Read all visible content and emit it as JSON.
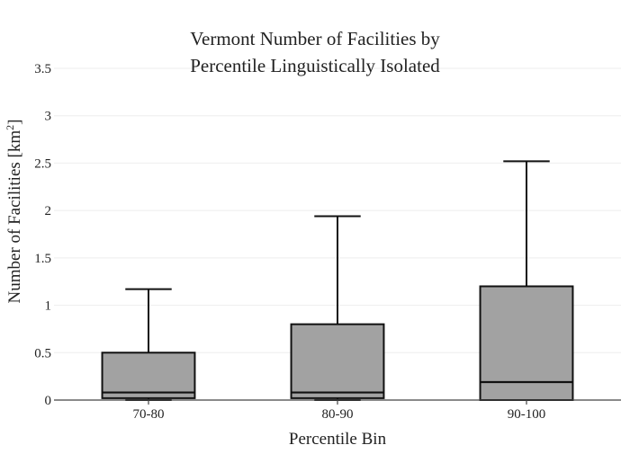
{
  "chart_data": {
    "type": "box",
    "title_lines": [
      "Vermont Number of Facilities by",
      "Percentile Linguistically Isolated"
    ],
    "xlabel": "Percentile Bin",
    "ylabel": "Number of Facilities",
    "ylabel_unit_base": "km",
    "ylabel_unit_sup": "2",
    "ylim": [
      0,
      3.5
    ],
    "yticks": [
      0,
      0.5,
      1,
      1.5,
      2,
      2.5,
      3,
      3.5
    ],
    "ytick_labels": [
      "0",
      "0.5",
      "1",
      "1.5",
      "2",
      "2.5",
      "3",
      "3.5"
    ],
    "grid": true,
    "categories": [
      "70-80",
      "80-90",
      "90-100"
    ],
    "boxes": [
      {
        "category": "70-80",
        "min": 0,
        "q1": 0.02,
        "median": 0.08,
        "q3": 0.5,
        "max": 1.17
      },
      {
        "category": "80-90",
        "min": 0,
        "q1": 0.02,
        "median": 0.08,
        "q3": 0.8,
        "max": 1.94
      },
      {
        "category": "90-100",
        "min": 0,
        "q1": 0,
        "median": 0.19,
        "q3": 1.2,
        "max": 2.52
      }
    ],
    "colors": {
      "box_fill": "#a2a2a2",
      "box_stroke": "#111111",
      "grid": "#eeeeee",
      "axis": "#444444"
    }
  }
}
